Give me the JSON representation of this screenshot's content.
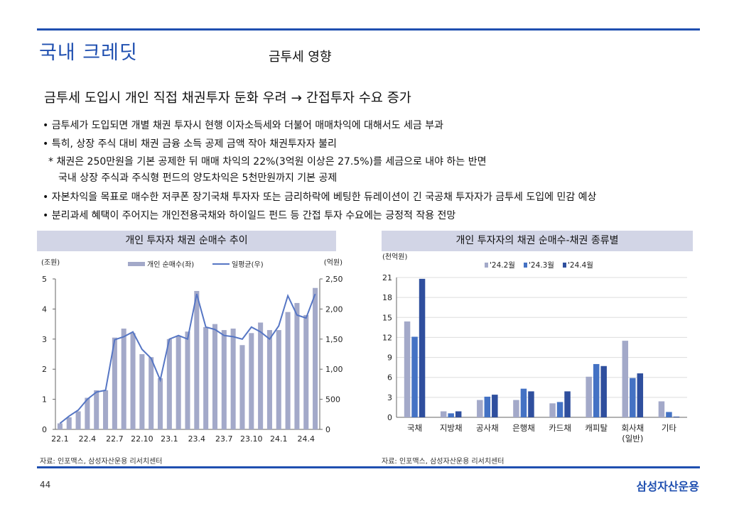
{
  "header": {
    "section_title": "국내 크레딧",
    "subtitle": "금투세 영향"
  },
  "headline": "금투세 도입시 개인 직접 채권투자 둔화 우려 → 간접투자 수요 증가",
  "bullets": [
    "• 금투세가 도입되면 개별 채권 투자시  현행 이자소득세와 더불어 매매차익에 대해서도 세금 부과",
    "• 특히, 상장 주식 대비 채권 금융 소득 공제 금액 작아 채권투자자 불리"
  ],
  "note": {
    "line1": "* 채권은 250만원을 기본 공제한 뒤 매매 차익의 22%(3억원 이상은 27.5%)를 세금으로 내야 하는  반면",
    "line2": "국내 상장 주식과 주식형 펀드의 양도차익은 5천만원까지 기본 공제"
  },
  "bullets2": [
    "• 자본차익을 목표로 매수한 저쿠폰 장기국채 투자자 또는 금리하락에 베팅한 듀레이션이 긴 국공채 투자자가 금투세 도입에 민감 예상",
    "• 분리과세 혜택이 주어지는 개인전용국채와 하이일드 펀드 등 간접 투자 수요에는 긍정적 작용 전망"
  ],
  "charts": {
    "left_header": "개인 투자자 채권 순매수 추이",
    "right_header": "개인 투자자의 채권 순매수-채권 종류별",
    "left_source": "자료: 인포맥스, 삼성자산운용 리서치센터",
    "right_source": "자료: 인포맥스, 삼성자산운용 리서치센터"
  },
  "chart_data": [
    {
      "type": "bar",
      "title": "개인 투자자 채권 순매수 추이",
      "left_axis_label": "(조원)",
      "right_axis_label": "(억원)",
      "legend": [
        "개인 순매수(좌)",
        "일평균(우)"
      ],
      "ylim_left": [
        0,
        5
      ],
      "ylim_right": [
        0,
        2500
      ],
      "yticks_left": [
        "0",
        "1",
        "2",
        "3",
        "4",
        "5"
      ],
      "yticks_right": [
        "0",
        "500",
        "1,000",
        "1,500",
        "2,000",
        "2,500"
      ],
      "xtick_labels": [
        "22.1",
        "22.4",
        "22.7",
        "22.10",
        "23.1",
        "23.4",
        "23.7",
        "23.10",
        "24.1",
        "24.4"
      ],
      "bar_values": [
        0.2,
        0.4,
        0.6,
        1.05,
        1.3,
        1.3,
        3.05,
        3.35,
        3.2,
        2.5,
        2.4,
        1.7,
        3.0,
        3.1,
        3.25,
        4.6,
        3.4,
        3.5,
        3.3,
        3.35,
        2.8,
        3.2,
        3.55,
        3.3,
        3.3,
        3.9,
        4.2,
        3.8,
        4.7
      ],
      "line_values": [
        100,
        220,
        320,
        500,
        620,
        650,
        1490,
        1540,
        1620,
        1330,
        1180,
        820,
        1500,
        1560,
        1500,
        2250,
        1700,
        1660,
        1560,
        1540,
        1500,
        1700,
        1620,
        1500,
        1720,
        2220,
        1900,
        1850,
        2250
      ]
    },
    {
      "type": "bar",
      "title": "개인 투자자의 채권 순매수-채권 종류별",
      "ylabel": "(천억원)",
      "ylim": [
        0,
        21
      ],
      "yticks": [
        "0",
        "3",
        "6",
        "9",
        "12",
        "15",
        "18",
        "21"
      ],
      "categories": [
        "국채",
        "지방채",
        "공사채",
        "은행채",
        "카드채",
        "캐피탈",
        "회사채\n(일반)",
        "기타"
      ],
      "series": [
        {
          "name": "'24.2월",
          "color": "#a3a9c9",
          "values": [
            14.4,
            0.9,
            2.6,
            2.6,
            2.1,
            6.1,
            11.5,
            2.4
          ]
        },
        {
          "name": "'24.3월",
          "color": "#4472c4",
          "values": [
            12.1,
            0.6,
            3.1,
            4.3,
            2.3,
            8.0,
            5.9,
            0.8
          ]
        },
        {
          "name": "'24.4월",
          "color": "#2f4f9e",
          "values": [
            20.8,
            0.9,
            3.4,
            3.9,
            3.9,
            7.7,
            6.6,
            0.1
          ]
        }
      ]
    }
  ],
  "footer": {
    "page_number": "44",
    "logo": "삼성자산운용"
  }
}
